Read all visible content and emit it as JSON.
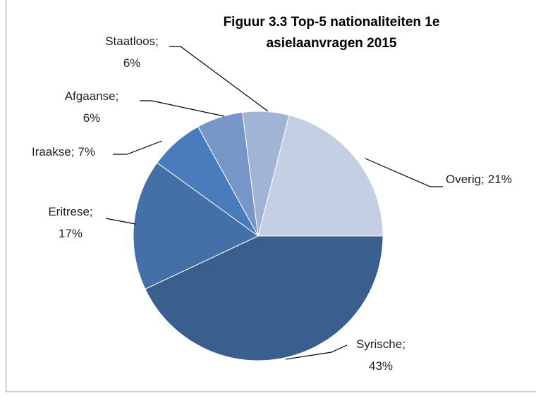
{
  "chart_data": {
    "type": "pie",
    "title": [
      "Figuur 3.3 Top-5 nationaliteiten 1e",
      "asielaanvragen 2015"
    ],
    "categories": [
      "Syrische;",
      "Eritrese;",
      "Iraakse;",
      "Afgaanse;",
      "Staatloos;",
      "Overig;"
    ],
    "values": [
      43,
      17,
      7,
      6,
      6,
      21
    ],
    "value_labels": [
      "43%",
      "17%",
      "7%",
      "6%",
      "6%",
      "21%"
    ],
    "colors": [
      "#3a5f8f",
      "#4470a8",
      "#4a7bbd",
      "#7696c8",
      "#a2b4d6",
      "#c4cfe4"
    ],
    "start_angle": 0,
    "direction": "clockwise"
  }
}
